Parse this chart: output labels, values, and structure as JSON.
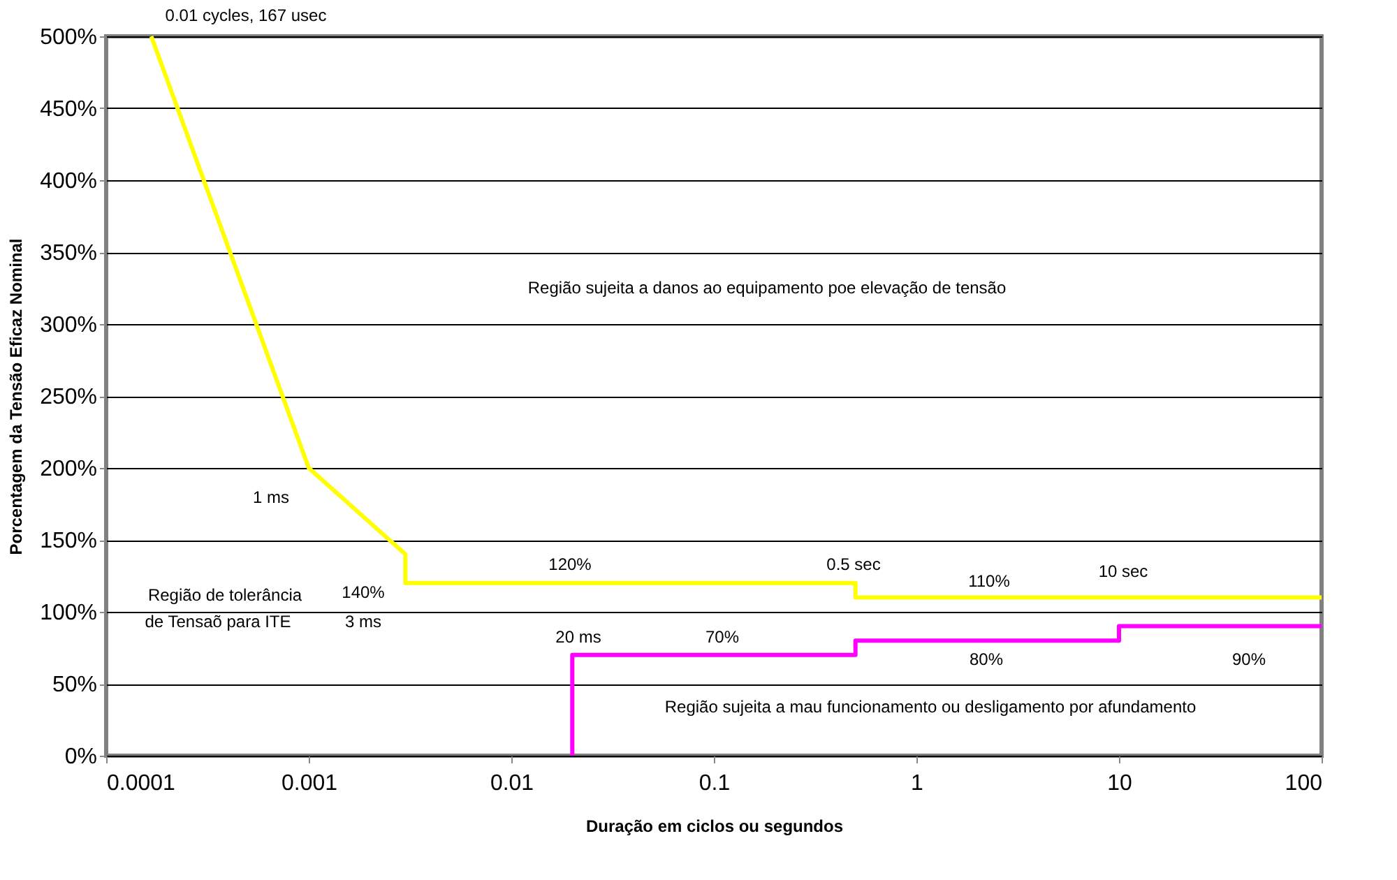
{
  "chart_data": {
    "type": "line",
    "xlabel": "Duração em ciclos ou segundos",
    "ylabel": "Porcentagem da Tensão Eficaz Nominal",
    "log": "x",
    "xlim": [
      0.0001,
      100
    ],
    "xticks": [
      0.0001,
      0.001,
      0.01,
      0.1,
      1,
      10,
      100
    ],
    "ylim": [
      0,
      500
    ],
    "yticks": [
      {
        "value": 0,
        "label": "0%"
      },
      {
        "value": 50,
        "label": "50%"
      },
      {
        "value": 100,
        "label": "100%"
      },
      {
        "value": 150,
        "label": "150%"
      },
      {
        "value": 200,
        "label": "200%"
      },
      {
        "value": 250,
        "label": "250%"
      },
      {
        "value": 300,
        "label": "300%"
      },
      {
        "value": 350,
        "label": "350%"
      },
      {
        "value": 400,
        "label": "400%"
      },
      {
        "value": 450,
        "label": "450%"
      },
      {
        "value": 500,
        "label": "500%"
      }
    ],
    "grid": "y",
    "legend": false,
    "line_style": "solid",
    "marker": "none",
    "series": [
      {
        "color": "#ffff00",
        "x": [
          0.000167,
          0.001,
          0.003,
          0.003,
          0.5,
          0.5,
          100
        ],
        "values": [
          500,
          200,
          140,
          120,
          120,
          110,
          110
        ]
      },
      {
        "color": "#ff00ff",
        "x": [
          0.02,
          0.02,
          0.5,
          0.5,
          10,
          10,
          100
        ],
        "values": [
          0,
          70,
          70,
          80,
          80,
          90,
          90
        ]
      }
    ],
    "annotations": [
      "0.01 cycles, 167 usec",
      "1 ms",
      "140%",
      "3 ms",
      "Região de tolerância",
      "de Tensaõ para ITE",
      "120%",
      "0.5 sec",
      "110%",
      "10 sec",
      "20 ms",
      "70%",
      "80%",
      "90%",
      "Região sujeita a mau funcionamento ou desligamento por afundamento",
      "Região sujeita a danos ao equipamento poe elevação de tensão"
    ]
  }
}
